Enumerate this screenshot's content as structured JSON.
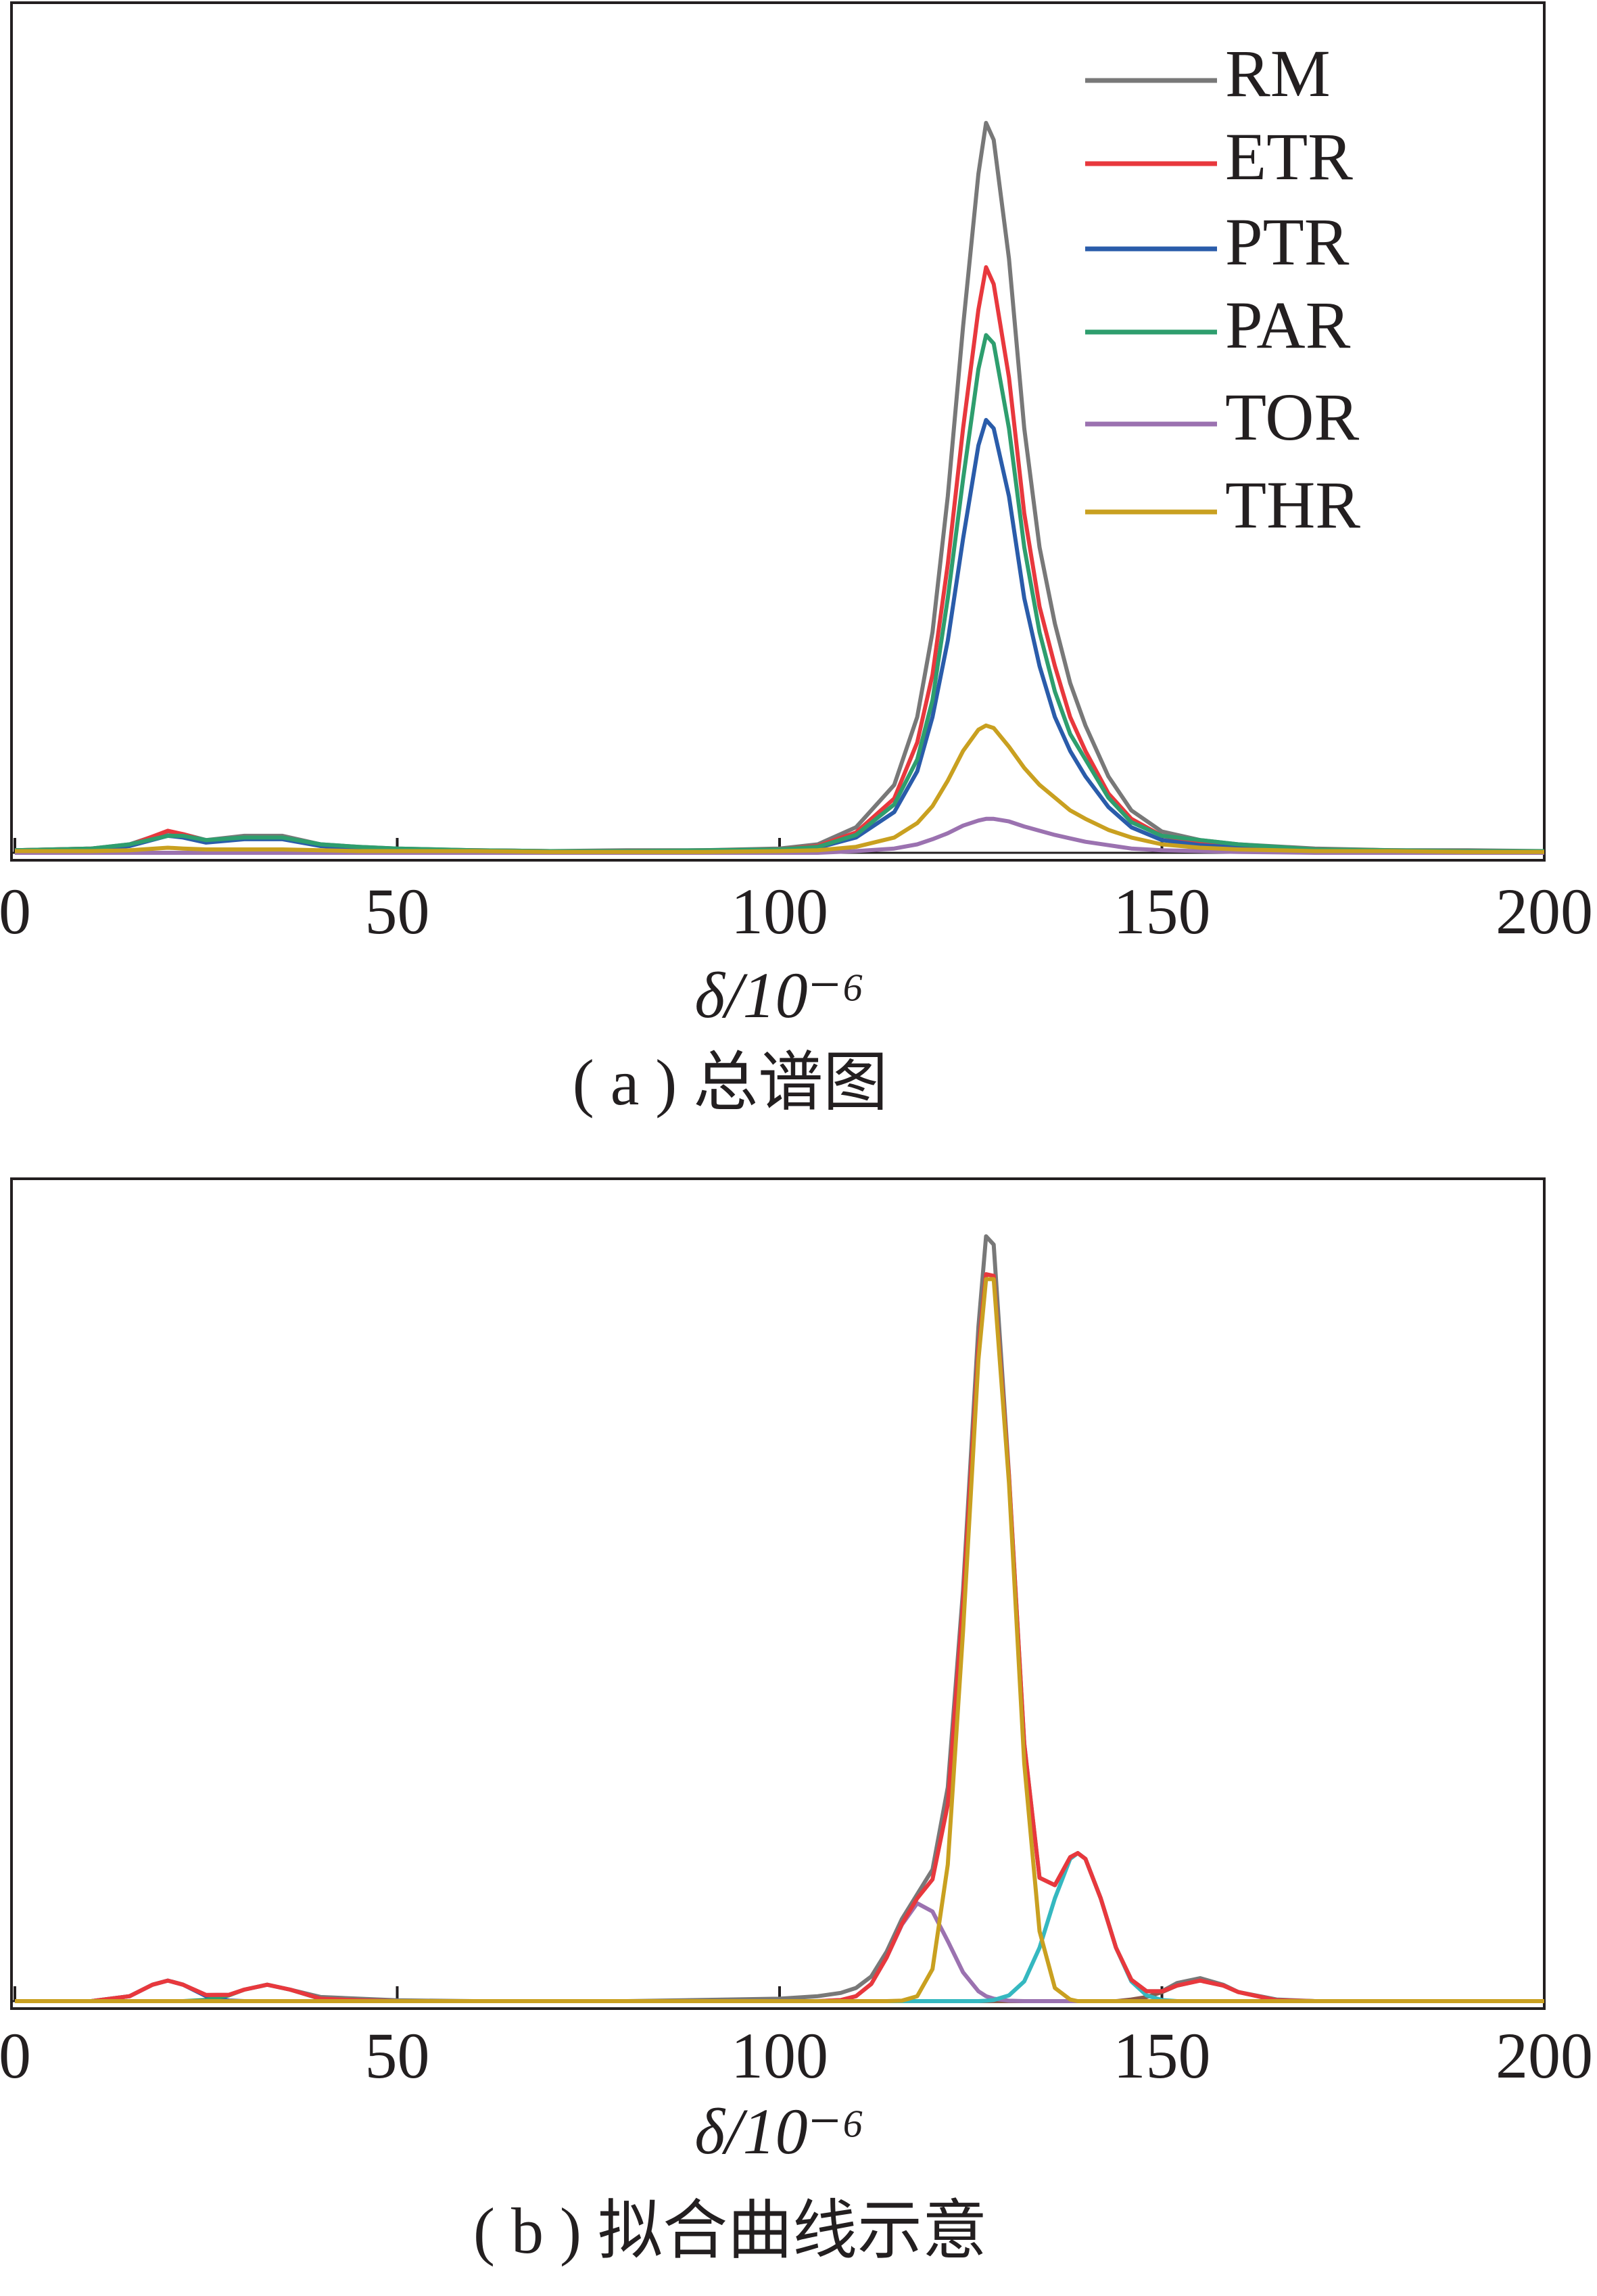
{
  "chart_data": [
    {
      "type": "line",
      "caption": "( a ) 总谱图",
      "xlabel": "δ/10⁻⁶",
      "xlim": [
        0,
        200
      ],
      "xticks": [
        0,
        50,
        100,
        150,
        200
      ],
      "ylim": [
        0,
        100
      ],
      "legend": "upper right",
      "x": [
        0,
        10,
        15,
        20,
        22,
        25,
        30,
        35,
        40,
        45,
        50,
        60,
        70,
        80,
        90,
        100,
        105,
        110,
        115,
        118,
        120,
        122,
        124,
        126,
        127,
        128,
        130,
        132,
        134,
        136,
        138,
        140,
        143,
        146,
        150,
        155,
        160,
        170,
        180,
        190,
        200
      ],
      "series": [
        {
          "name": "RM",
          "color": "#787878",
          "values": [
            0.3,
            0.5,
            1,
            2.5,
            2.2,
            1.5,
            2,
            2,
            1,
            0.7,
            0.5,
            0.3,
            0.2,
            0.3,
            0.3,
            0.5,
            1,
            3,
            8,
            16,
            26,
            42,
            62,
            80,
            86,
            84,
            70,
            50,
            36,
            27,
            20,
            15,
            9,
            5,
            2.5,
            1.5,
            1,
            0.5,
            0.3,
            0.3,
            0.2
          ]
        },
        {
          "name": "ETR",
          "color": "#e8383d",
          "values": [
            0.3,
            0.5,
            0.9,
            2.6,
            2.2,
            1.4,
            1.8,
            1.8,
            0.9,
            0.6,
            0.4,
            0.3,
            0.2,
            0.2,
            0.3,
            0.4,
            0.8,
            2.4,
            6.4,
            13,
            21,
            34,
            50,
            64,
            69,
            67,
            56,
            40,
            29,
            22,
            16,
            12,
            7,
            4,
            2,
            1.2,
            0.8,
            0.4,
            0.3,
            0.2,
            0.2
          ]
        },
        {
          "name": "PTR",
          "color": "#2a5caa",
          "values": [
            0.3,
            0.4,
            0.8,
            2,
            1.8,
            1.2,
            1.6,
            1.6,
            0.8,
            0.5,
            0.4,
            0.2,
            0.2,
            0.2,
            0.2,
            0.3,
            0.6,
            1.8,
            4.8,
            9.6,
            16,
            25,
            37,
            48,
            51,
            50,
            42,
            30,
            22,
            16,
            12,
            9,
            5.4,
            3,
            1.5,
            0.9,
            0.6,
            0.3,
            0.2,
            0.2,
            0.1
          ]
        },
        {
          "name": "PAR",
          "color": "#2e9e6e",
          "values": [
            0.3,
            0.5,
            1,
            2,
            2,
            1.5,
            1.8,
            1.8,
            1,
            0.7,
            0.5,
            0.3,
            0.2,
            0.2,
            0.3,
            0.4,
            0.7,
            2.1,
            5.7,
            11,
            18,
            30,
            44,
            57,
            61,
            60,
            50,
            36,
            26,
            19,
            14,
            11,
            6.5,
            3.6,
            2,
            1.5,
            1,
            0.4,
            0.3,
            0.2,
            0.2
          ]
        },
        {
          "name": "TOR",
          "color": "#9b72b0",
          "values": [
            0,
            0,
            0,
            0,
            0,
            0,
            0,
            0,
            0,
            0,
            0,
            0,
            0,
            0,
            0,
            0,
            0,
            0.2,
            0.5,
            1,
            1.6,
            2.3,
            3.2,
            3.8,
            4,
            4,
            3.7,
            3.1,
            2.6,
            2.1,
            1.7,
            1.3,
            0.9,
            0.5,
            0.3,
            0.2,
            0.1,
            0,
            0,
            0,
            0
          ]
        },
        {
          "name": "THR",
          "color": "#c9a020",
          "values": [
            0.2,
            0.2,
            0.3,
            0.6,
            0.5,
            0.4,
            0.4,
            0.4,
            0.3,
            0.2,
            0.2,
            0.2,
            0.1,
            0.1,
            0.1,
            0.2,
            0.3,
            0.7,
            1.8,
            3.5,
            5.5,
            8.5,
            12,
            14.5,
            15,
            14.7,
            12.5,
            10,
            8,
            6.5,
            5,
            4,
            2.7,
            1.8,
            1,
            0.6,
            0.4,
            0.2,
            0.2,
            0.1,
            0.1
          ]
        }
      ]
    },
    {
      "type": "line",
      "caption": "( b ) 拟合曲线示意",
      "xlabel": "δ/10⁻⁶",
      "xlim": [
        0,
        200
      ],
      "xticks": [
        0,
        50,
        100,
        150,
        200
      ],
      "ylim": [
        0,
        100
      ],
      "x": [
        0,
        10,
        15,
        18,
        20,
        22,
        25,
        28,
        30,
        33,
        36,
        40,
        45,
        50,
        60,
        80,
        100,
        105,
        108,
        110,
        112,
        114,
        116,
        118,
        120,
        122,
        124,
        126,
        127,
        128,
        130,
        132,
        134,
        136,
        138,
        139,
        140,
        142,
        144,
        146,
        148,
        150,
        152,
        155,
        158,
        160,
        165,
        170,
        180,
        200
      ],
      "series": [
        {
          "color": "#2a5caa",
          "values": [
            0,
            0,
            0.6,
            2,
            2.5,
            2,
            0.6,
            0.07,
            0,
            0,
            0,
            0,
            0,
            0,
            0,
            0,
            0,
            0,
            0,
            0,
            0,
            0,
            0,
            0,
            0,
            0,
            0,
            0,
            0,
            0,
            0,
            0,
            0,
            0,
            0,
            0,
            0,
            0,
            0,
            0,
            0,
            0,
            0,
            0,
            0,
            0,
            0,
            0,
            0,
            0
          ]
        },
        {
          "color": "#2e9e6e",
          "values": [
            0,
            0,
            0,
            0,
            0,
            0,
            0.15,
            0.7,
            1.4,
            2,
            1.4,
            0.27,
            0,
            0,
            0,
            0,
            0,
            0,
            0,
            0,
            0,
            0,
            0,
            0,
            0,
            0,
            0,
            0,
            0,
            0,
            0,
            0,
            0,
            0,
            0,
            0,
            0,
            0,
            0,
            0,
            0,
            0,
            0,
            0,
            0,
            0,
            0,
            0,
            0,
            0
          ]
        },
        {
          "color": "#8b5a4a",
          "values": [
            0,
            0,
            0,
            0,
            0,
            0,
            0,
            0,
            0,
            0,
            0,
            0,
            0,
            0,
            0,
            0,
            0,
            0,
            0,
            0,
            0,
            0,
            0,
            0,
            0,
            0,
            0,
            0,
            0,
            0,
            0,
            0,
            0,
            0,
            0,
            0,
            0,
            0,
            0,
            0.2,
            0.5,
            1.1,
            1.9,
            2.5,
            1.9,
            1.1,
            0.1,
            0,
            0,
            0
          ]
        },
        {
          "color": "#9b72b0",
          "values": [
            0,
            0,
            0,
            0,
            0,
            0,
            0,
            0,
            0,
            0,
            0,
            0,
            0,
            0,
            0,
            0,
            0,
            0,
            0.13,
            0.6,
            2.1,
            5.3,
            9.3,
            11.9,
            10.9,
            7.3,
            3.5,
            1.2,
            0.6,
            0.3,
            0.05,
            0,
            0,
            0,
            0,
            0,
            0,
            0,
            0,
            0,
            0,
            0,
            0,
            0,
            0,
            0,
            0,
            0,
            0,
            0
          ]
        },
        {
          "color": "#35b8c0",
          "values": [
            0,
            0,
            0,
            0,
            0,
            0,
            0,
            0,
            0,
            0,
            0,
            0,
            0,
            0,
            0,
            0,
            0,
            0,
            0,
            0,
            0,
            0,
            0,
            0,
            0,
            0,
            0,
            0,
            0.05,
            0.13,
            0.7,
            2.4,
            6.5,
            12.5,
            17.3,
            18,
            17.3,
            12.5,
            6.5,
            2.4,
            0.7,
            0.13,
            0,
            0,
            0,
            0,
            0,
            0,
            0,
            0
          ]
        },
        {
          "color": "#787878",
          "values": [
            0,
            0,
            0.6,
            2,
            2.5,
            2,
            0.75,
            0.77,
            1.4,
            2,
            1.4,
            0.5,
            0.3,
            0.1,
            0,
            0,
            0.3,
            0.6,
            1,
            1.6,
            3,
            6,
            10,
            13,
            16,
            26,
            50,
            82,
            93,
            92,
            64,
            31.3,
            15,
            14.1,
            17.5,
            18,
            17.3,
            12.5,
            6.5,
            2.6,
            1.2,
            1.2,
            2.2,
            2.8,
            2,
            1.1,
            0.2,
            0,
            0,
            0
          ]
        },
        {
          "color": "#e8383d",
          "values": [
            0,
            0,
            0.6,
            2,
            2.5,
            2,
            0.75,
            0.77,
            1.4,
            2,
            1.4,
            0.3,
            0.1,
            0,
            0,
            0,
            0,
            0,
            0.13,
            0.6,
            2.1,
            5.3,
            9.4,
            12.5,
            14.8,
            23.9,
            48.5,
            79.2,
            88.4,
            88.2,
            63.8,
            31.3,
            15,
            14.1,
            17.5,
            18,
            17.3,
            12.5,
            6.5,
            2.6,
            1.2,
            1.2,
            1.9,
            2.5,
            1.9,
            1.1,
            0.1,
            0,
            0,
            0
          ]
        },
        {
          "color": "#c9a020",
          "values": [
            0,
            0,
            0,
            0,
            0,
            0,
            0,
            0,
            0,
            0,
            0,
            0,
            0,
            0,
            0,
            0,
            0,
            0,
            0,
            0,
            0,
            0,
            0.06,
            0.6,
            3.9,
            16.6,
            45,
            78,
            87.8,
            87.8,
            63,
            28.9,
            8.5,
            1.6,
            0.2,
            0,
            0,
            0,
            0,
            0,
            0,
            0,
            0,
            0,
            0,
            0,
            0,
            0,
            0,
            0
          ]
        }
      ]
    }
  ]
}
